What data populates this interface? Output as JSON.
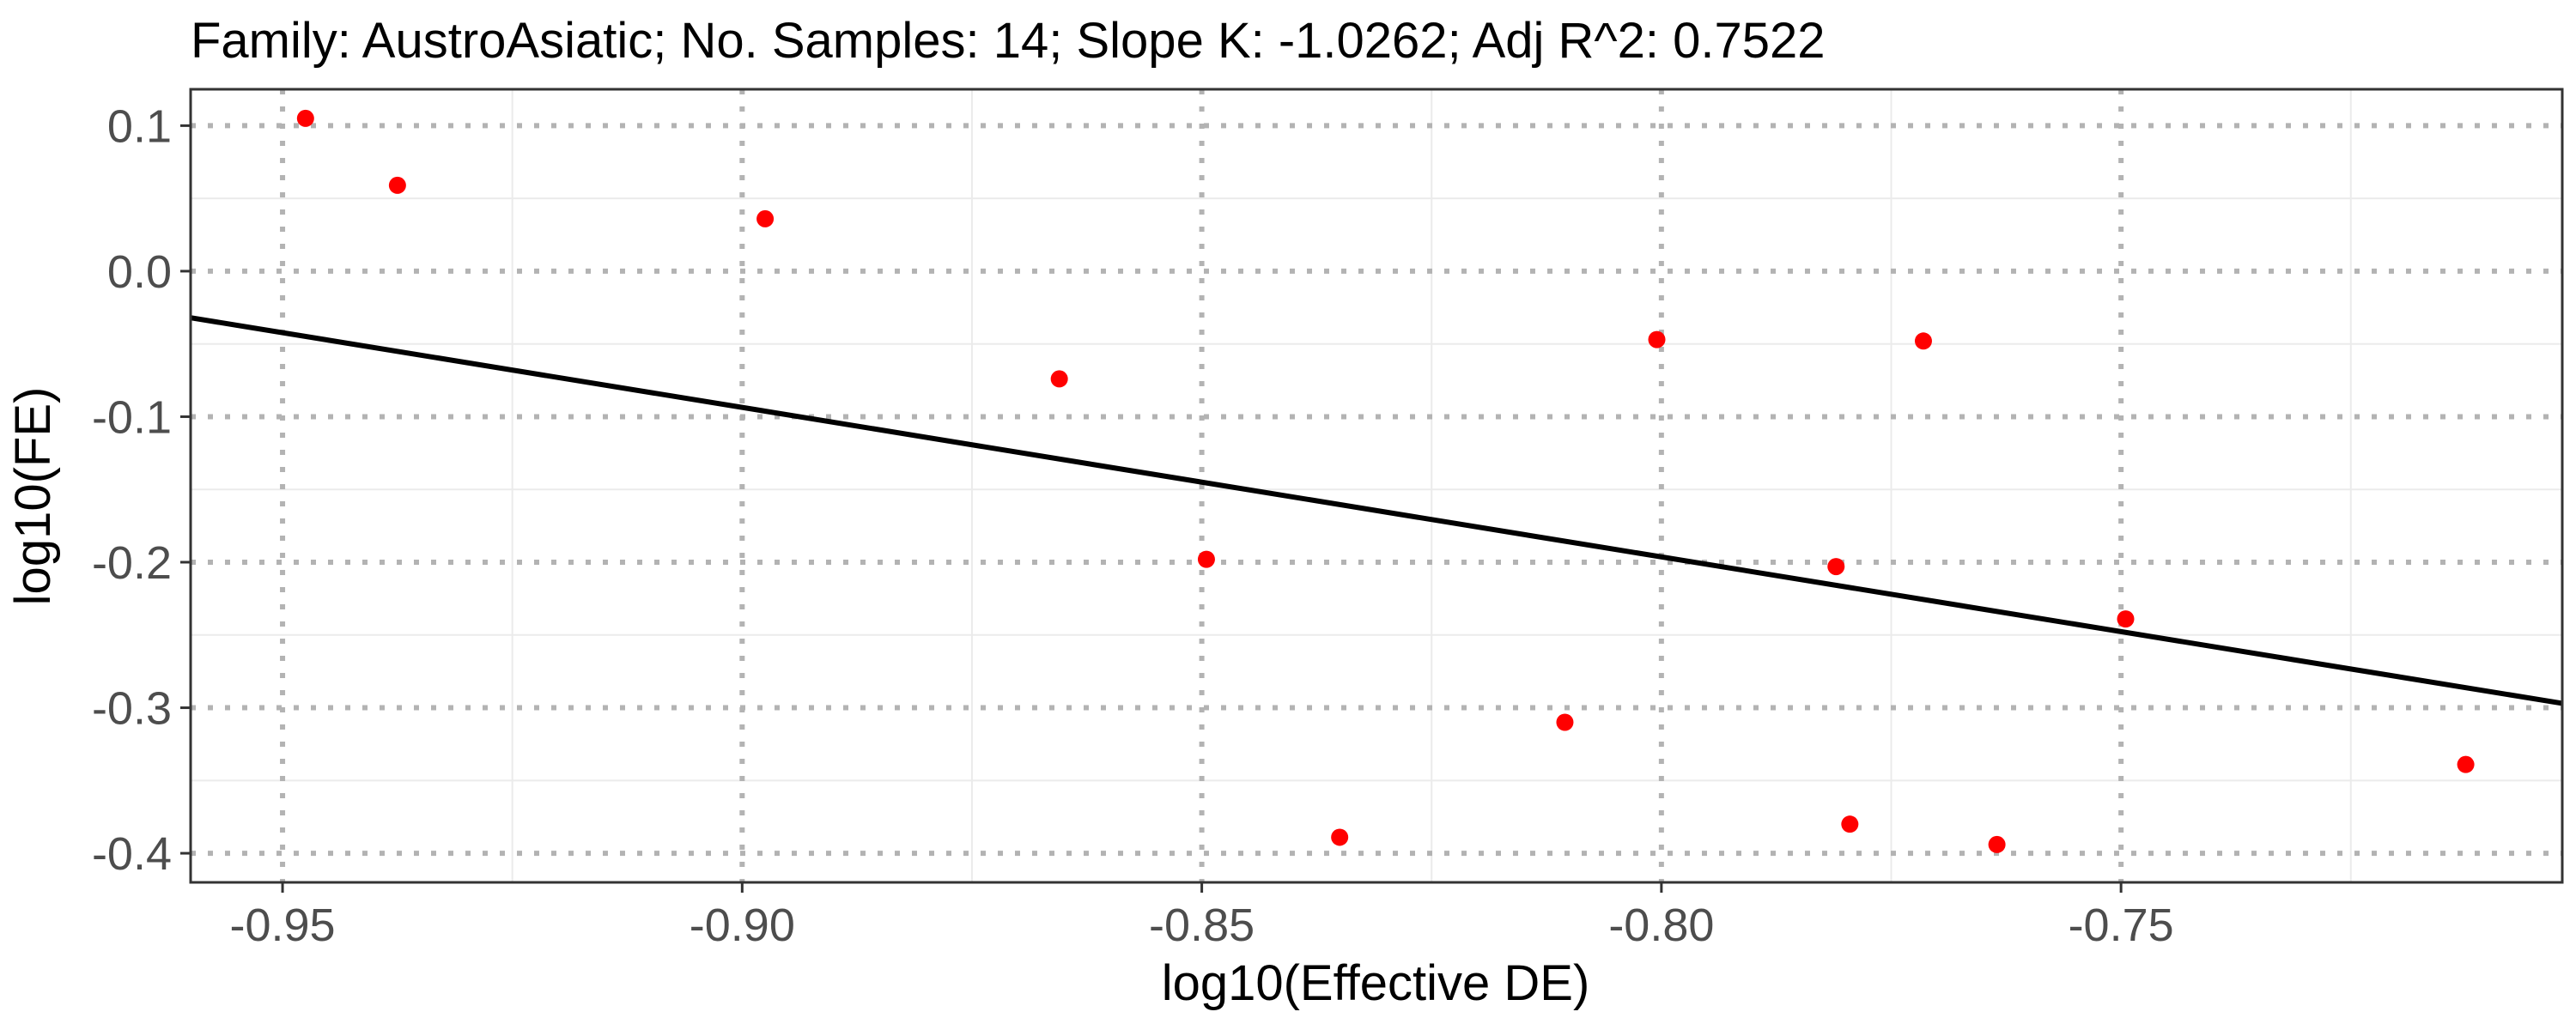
{
  "chart_data": {
    "type": "scatter",
    "title": "Family: AustroAsiatic; No. Samples: 14; Slope K: -1.0262; Adj R^2: 0.7522",
    "xlabel": "log10(Effective DE)",
    "ylabel": "log10(FE)",
    "xlim": [
      -0.96,
      -0.702
    ],
    "ylim": [
      -0.42,
      0.125
    ],
    "x_ticks": [
      -0.95,
      -0.9,
      -0.85,
      -0.8,
      -0.75
    ],
    "x_tick_labels": [
      "-0.95",
      "-0.90",
      "-0.85",
      "-0.80",
      "-0.75"
    ],
    "y_ticks": [
      0.1,
      0.0,
      -0.1,
      -0.2,
      -0.3,
      -0.4
    ],
    "y_tick_labels": [
      "0.1",
      "0.0",
      "-0.1",
      "-0.2",
      "-0.3",
      "-0.4"
    ],
    "x_minor": [
      -0.925,
      -0.875,
      -0.825,
      -0.775,
      -0.725
    ],
    "y_minor": [
      0.05,
      -0.05,
      -0.15,
      -0.25,
      -0.35
    ],
    "grid": true,
    "legend": "none",
    "series": [
      {
        "x": [
          -0.9475,
          -0.9375,
          -0.8975,
          -0.8655,
          -0.8495,
          -0.835,
          -0.8105,
          -0.8005,
          -0.781,
          -0.7795,
          -0.7715,
          -0.7635,
          -0.7495,
          -0.7125
        ],
        "y": [
          0.105,
          0.059,
          0.036,
          -0.074,
          -0.198,
          -0.389,
          -0.31,
          -0.047,
          -0.203,
          -0.38,
          -0.048,
          -0.394,
          -0.239,
          -0.339
        ],
        "color": "#ff0000"
      }
    ],
    "fit_line": {
      "x": [
        -0.96,
        -0.702
      ],
      "y": [
        -0.032,
        -0.297
      ],
      "color": "#000000"
    },
    "colors": {
      "points": "#ff0000",
      "fit_line": "#000000",
      "major_grid": "#b3b3b3",
      "minor_grid": "#ebebeb",
      "border": "#333333",
      "tick_label": "#4d4d4d"
    }
  }
}
